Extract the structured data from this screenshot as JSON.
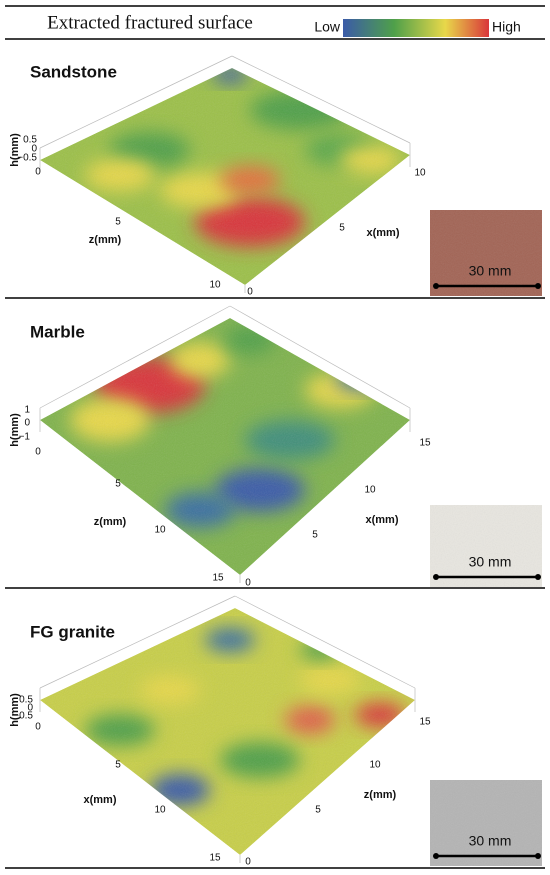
{
  "header": {
    "title": "Extracted fractured surface",
    "legend": {
      "low": "Low",
      "high": "High"
    }
  },
  "panels": [
    {
      "name": "Sandstone",
      "h_label": "h(mm)",
      "h_ticks": [
        "0.5",
        "0",
        "−0.5"
      ],
      "left_axis_label": "z(mm)",
      "left_ticks": [
        "0",
        "5",
        "10"
      ],
      "right_axis_label": "x(mm)",
      "right_ticks": [
        "10",
        "5",
        "0"
      ],
      "scale_bar": "30 mm"
    },
    {
      "name": "Marble",
      "h_label": "h(mm)",
      "h_ticks": [
        "1",
        "0",
        "−1"
      ],
      "left_axis_label": "z(mm)",
      "left_ticks": [
        "0",
        "5",
        "10",
        "15"
      ],
      "right_axis_label": "x(mm)",
      "right_ticks": [
        "15",
        "10",
        "5",
        "0"
      ],
      "scale_bar": "30 mm"
    },
    {
      "name": "FG granite",
      "h_label": "h(mm)",
      "h_ticks": [
        "0.5",
        "0",
        "−0.5"
      ],
      "left_axis_label": "x(mm)",
      "left_ticks": [
        "0",
        "5",
        "10",
        "15"
      ],
      "right_axis_label": "z(mm)",
      "right_ticks": [
        "15",
        "10",
        "5",
        "0"
      ],
      "scale_bar": "30 mm"
    }
  ]
}
